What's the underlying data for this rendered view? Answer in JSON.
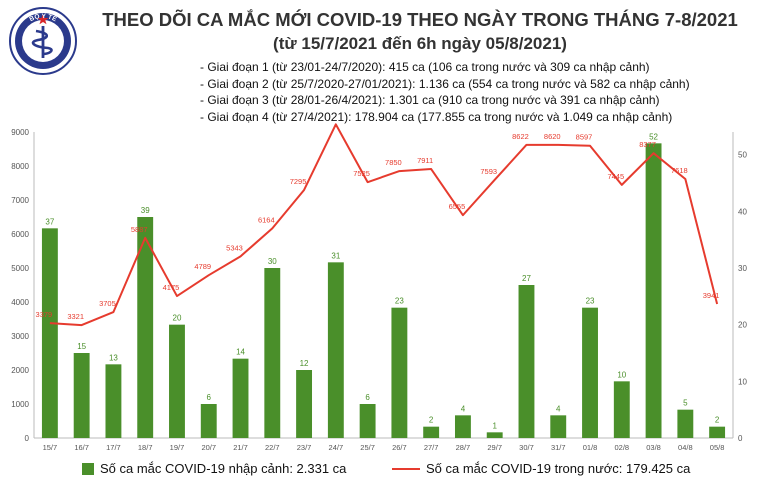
{
  "header": {
    "logo_text": "BỘ Y TẾ",
    "title": "THEO DÕI CA MẮC MỚI COVID-19 THEO NGÀY TRONG THÁNG 7-8/2021",
    "subtitle": "(từ 15/7/2021 đến 6h ngày 05/8/2021)",
    "notes": [
      "- Giai đoạn 1 (từ 23/01-24/7/2020): 415 ca (106 ca trong nước và 309 ca nhập cảnh)",
      "- Giai đoạn 2 (từ 25/7/2020-27/01/2021): 1.136 ca (554 ca trong nước và 582 ca nhập cảnh)",
      "- Giai đoạn 3 (từ 28/01-26/4/2021): 1.301 ca (910 ca trong nước và 391 ca nhập cảnh)",
      "- Giai đoạn 4 (từ 27/4/2021): 178.904 ca (177.855 ca trong nước và 1.049 ca nhập cảnh)"
    ]
  },
  "colors": {
    "bar": "#4a8f2a",
    "line": "#e63b2e",
    "axis": "#bbbbbb",
    "text": "#555555"
  },
  "chart_data": {
    "type": "bar",
    "categories": [
      "15/7",
      "16/7",
      "17/7",
      "18/7",
      "19/7",
      "20/7",
      "21/7",
      "22/7",
      "23/7",
      "24/7",
      "25/7",
      "26/7",
      "27/7",
      "28/7",
      "29/7",
      "30/7",
      "31/7",
      "01/8",
      "02/8",
      "03/8",
      "04/8",
      "05/8"
    ],
    "series": [
      {
        "name": "Số ca mắc COVID-19 nhập cảnh: 2.331 ca",
        "type": "bar",
        "axis": "right",
        "values": [
          37,
          15,
          13,
          39,
          20,
          6,
          14,
          30,
          12,
          31,
          6,
          23,
          2,
          4,
          1,
          27,
          4,
          23,
          10,
          52,
          5,
          2
        ]
      },
      {
        "name": "Số ca mắc COVID-19 trong nước: 179.425 ca",
        "type": "line",
        "axis": "left",
        "values": [
          3379,
          3321,
          3705,
          5887,
          4175,
          4789,
          5343,
          6164,
          7295,
          9225,
          7525,
          7850,
          7911,
          6555,
          7593,
          8622,
          8620,
          8597,
          7445,
          8377,
          7618,
          3941
        ]
      }
    ],
    "y_left": {
      "min": 0,
      "max": 9000,
      "ticks": [
        0,
        1000,
        2000,
        3000,
        4000,
        5000,
        6000,
        7000,
        8000,
        9000
      ]
    },
    "y_right": {
      "min": 0,
      "max": 54,
      "ticks": [
        0,
        10,
        20,
        30,
        40,
        50
      ]
    },
    "legend_position": "bottom",
    "grid": false
  }
}
